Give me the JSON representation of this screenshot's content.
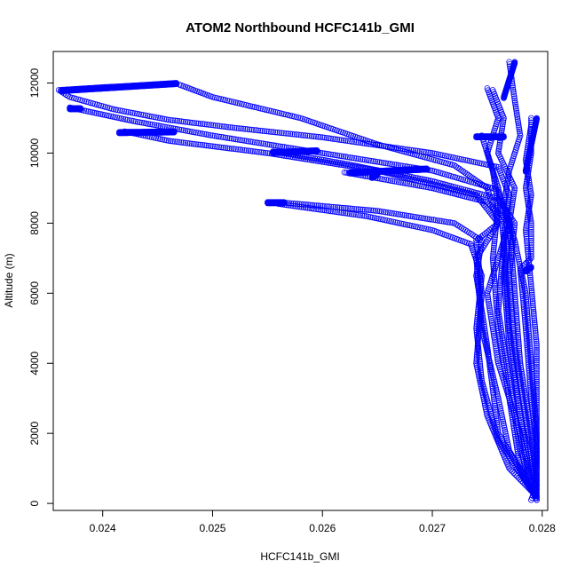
{
  "chart_data": {
    "type": "scatter",
    "title": "ATOM2 Northbound HCFC141b_GMI",
    "xlabel": "HCFC141b_GMI",
    "ylabel": "Altitude (m)",
    "xlim": [
      0.02355,
      0.02805
    ],
    "ylim": [
      -200,
      12900
    ],
    "x_ticks": [
      "0.024",
      "0.025",
      "0.026",
      "0.027",
      "0.028"
    ],
    "x_tick_values": [
      0.024,
      0.025,
      0.026,
      0.027,
      0.028
    ],
    "y_ticks": [
      "0",
      "2000",
      "4000",
      "6000",
      "8000",
      "10000",
      "12000"
    ],
    "y_tick_values": [
      0,
      2000,
      4000,
      6000,
      8000,
      10000,
      12000
    ],
    "grid": false,
    "marker": "open-circle",
    "color": "#0000ff",
    "series": [
      {
        "points": [
          [
            0.02467,
            12000
          ],
          [
            0.0244,
            11940
          ],
          [
            0.024,
            11880
          ],
          [
            0.0236,
            11800
          ],
          [
            0.0237,
            11600
          ],
          [
            0.0241,
            11250
          ],
          [
            0.0246,
            10950
          ],
          [
            0.0252,
            10720
          ],
          [
            0.026,
            10450
          ],
          [
            0.027,
            10000
          ],
          [
            0.0276,
            9600
          ],
          [
            0.0277,
            8800
          ],
          [
            0.02765,
            7500
          ],
          [
            0.0277,
            5000
          ],
          [
            0.0278,
            2500
          ],
          [
            0.0279,
            500
          ],
          [
            0.02795,
            100
          ]
        ]
      },
      {
        "points": [
          [
            0.0247,
            11950
          ],
          [
            0.025,
            11600
          ],
          [
            0.0258,
            11000
          ],
          [
            0.0265,
            10250
          ],
          [
            0.0272,
            9650
          ],
          [
            0.0275,
            9000
          ],
          [
            0.0276,
            8000
          ],
          [
            0.0274,
            7000
          ],
          [
            0.02745,
            5000
          ],
          [
            0.0276,
            3000
          ],
          [
            0.0277,
            1500
          ],
          [
            0.02795,
            200
          ]
        ]
      },
      {
        "points": [
          [
            0.0237,
            11300
          ],
          [
            0.0243,
            10900
          ],
          [
            0.025,
            10500
          ],
          [
            0.026,
            10000
          ],
          [
            0.027,
            9500
          ],
          [
            0.0276,
            8950
          ],
          [
            0.0277,
            8000
          ],
          [
            0.0276,
            7000
          ],
          [
            0.0275,
            6000
          ],
          [
            0.0276,
            4000
          ],
          [
            0.0278,
            2000
          ],
          [
            0.0279,
            500
          ]
        ]
      },
      {
        "points": [
          [
            0.0242,
            10620
          ],
          [
            0.0246,
            10350
          ],
          [
            0.0255,
            10000
          ],
          [
            0.0265,
            9500
          ],
          [
            0.0274,
            8800
          ],
          [
            0.0276,
            8000
          ],
          [
            0.0274,
            7500
          ],
          [
            0.02745,
            6000
          ],
          [
            0.0274,
            4000
          ],
          [
            0.0275,
            2500
          ],
          [
            0.0277,
            1000
          ],
          [
            0.02795,
            200
          ]
        ]
      },
      {
        "points": [
          [
            0.02555,
            10050
          ],
          [
            0.0262,
            9700
          ],
          [
            0.027,
            9200
          ],
          [
            0.0276,
            8700
          ],
          [
            0.02775,
            8000
          ],
          [
            0.0277,
            6500
          ],
          [
            0.02775,
            4500
          ],
          [
            0.02785,
            2500
          ],
          [
            0.02795,
            300
          ]
        ]
      },
      {
        "points": [
          [
            0.0256,
            8600
          ],
          [
            0.0265,
            8350
          ],
          [
            0.0272,
            8000
          ],
          [
            0.02745,
            7500
          ],
          [
            0.0274,
            6500
          ],
          [
            0.0275,
            4500
          ],
          [
            0.0276,
            2000
          ],
          [
            0.0279,
            400
          ]
        ]
      },
      {
        "points": [
          [
            0.0262,
            9450
          ],
          [
            0.027,
            9000
          ],
          [
            0.0275,
            8600
          ],
          [
            0.0277,
            8000
          ],
          [
            0.02775,
            6000
          ],
          [
            0.0278,
            4000
          ],
          [
            0.0279,
            2000
          ],
          [
            0.02795,
            500
          ]
        ]
      },
      {
        "points": [
          [
            0.0256,
            8550
          ],
          [
            0.0264,
            8200
          ],
          [
            0.027,
            7800
          ],
          [
            0.02735,
            7400
          ],
          [
            0.02745,
            6500
          ],
          [
            0.0274,
            5000
          ],
          [
            0.02745,
            3500
          ],
          [
            0.0276,
            1800
          ],
          [
            0.02795,
            150
          ]
        ]
      },
      {
        "points": [
          [
            0.0277,
            12600
          ],
          [
            0.02775,
            11500
          ],
          [
            0.0278,
            10500
          ],
          [
            0.0277,
            9500
          ],
          [
            0.02765,
            8500
          ],
          [
            0.02775,
            7500
          ],
          [
            0.02785,
            6000
          ],
          [
            0.0279,
            4000
          ],
          [
            0.02795,
            2000
          ],
          [
            0.02795,
            500
          ],
          [
            0.0279,
            100
          ]
        ]
      },
      {
        "points": [
          [
            0.0275,
            11850
          ],
          [
            0.0276,
            11000
          ],
          [
            0.0275,
            10000
          ],
          [
            0.0276,
            9000
          ],
          [
            0.02765,
            7500
          ],
          [
            0.0276,
            5500
          ],
          [
            0.0277,
            3500
          ],
          [
            0.0278,
            1500
          ],
          [
            0.02795,
            200
          ]
        ]
      },
      {
        "points": [
          [
            0.02755,
            11800
          ],
          [
            0.02765,
            11000
          ],
          [
            0.0276,
            10000
          ],
          [
            0.02775,
            9000
          ],
          [
            0.0277,
            8000
          ],
          [
            0.02765,
            6500
          ],
          [
            0.0277,
            4500
          ],
          [
            0.0278,
            2500
          ],
          [
            0.02795,
            400
          ]
        ]
      },
      {
        "points": [
          [
            0.02745,
            10500
          ],
          [
            0.02755,
            9500
          ],
          [
            0.0276,
            8500
          ],
          [
            0.02755,
            7000
          ],
          [
            0.0276,
            5000
          ],
          [
            0.0277,
            3000
          ],
          [
            0.0278,
            1000
          ],
          [
            0.02795,
            100
          ]
        ]
      },
      {
        "points": [
          [
            0.0279,
            11000
          ],
          [
            0.0279,
            10000
          ],
          [
            0.02785,
            9000
          ],
          [
            0.0279,
            8000
          ],
          [
            0.0279,
            7000
          ],
          [
            0.0278,
            6700
          ],
          [
            0.02785,
            5000
          ],
          [
            0.0279,
            3000
          ],
          [
            0.02795,
            1500
          ],
          [
            0.02795,
            200
          ]
        ]
      },
      {
        "points": [
          [
            0.0279,
            10800
          ],
          [
            0.02785,
            9800
          ],
          [
            0.0279,
            8800
          ],
          [
            0.02785,
            7800
          ],
          [
            0.0279,
            6200
          ],
          [
            0.02795,
            4500
          ],
          [
            0.02795,
            3000
          ],
          [
            0.02795,
            1000
          ]
        ]
      }
    ],
    "clusters": [
      {
        "x0": 0.02363,
        "x1": 0.02467,
        "y": 11800,
        "y1": 12000
      },
      {
        "x0": 0.0237,
        "x1": 0.0238,
        "y": 11280,
        "y1": 11280
      },
      {
        "x0": 0.02415,
        "x1": 0.02465,
        "y": 10600,
        "y1": 10620
      },
      {
        "x0": 0.02555,
        "x1": 0.02595,
        "y": 10030,
        "y1": 10080
      },
      {
        "x0": 0.0255,
        "x1": 0.02565,
        "y": 8600,
        "y1": 8600
      },
      {
        "x0": 0.02625,
        "x1": 0.02695,
        "y": 9450,
        "y1": 9560
      },
      {
        "x0": 0.02645,
        "x1": 0.0265,
        "y": 9320,
        "y1": 9400
      },
      {
        "x0": 0.0274,
        "x1": 0.02765,
        "y": 10480,
        "y1": 10480
      },
      {
        "x0": 0.02785,
        "x1": 0.0279,
        "y": 6650,
        "y1": 6750
      },
      {
        "x0": 0.02765,
        "x1": 0.02775,
        "y": 11600,
        "y1": 12600
      },
      {
        "x0": 0.02785,
        "x1": 0.02795,
        "y": 9500,
        "y1": 11000
      }
    ]
  }
}
